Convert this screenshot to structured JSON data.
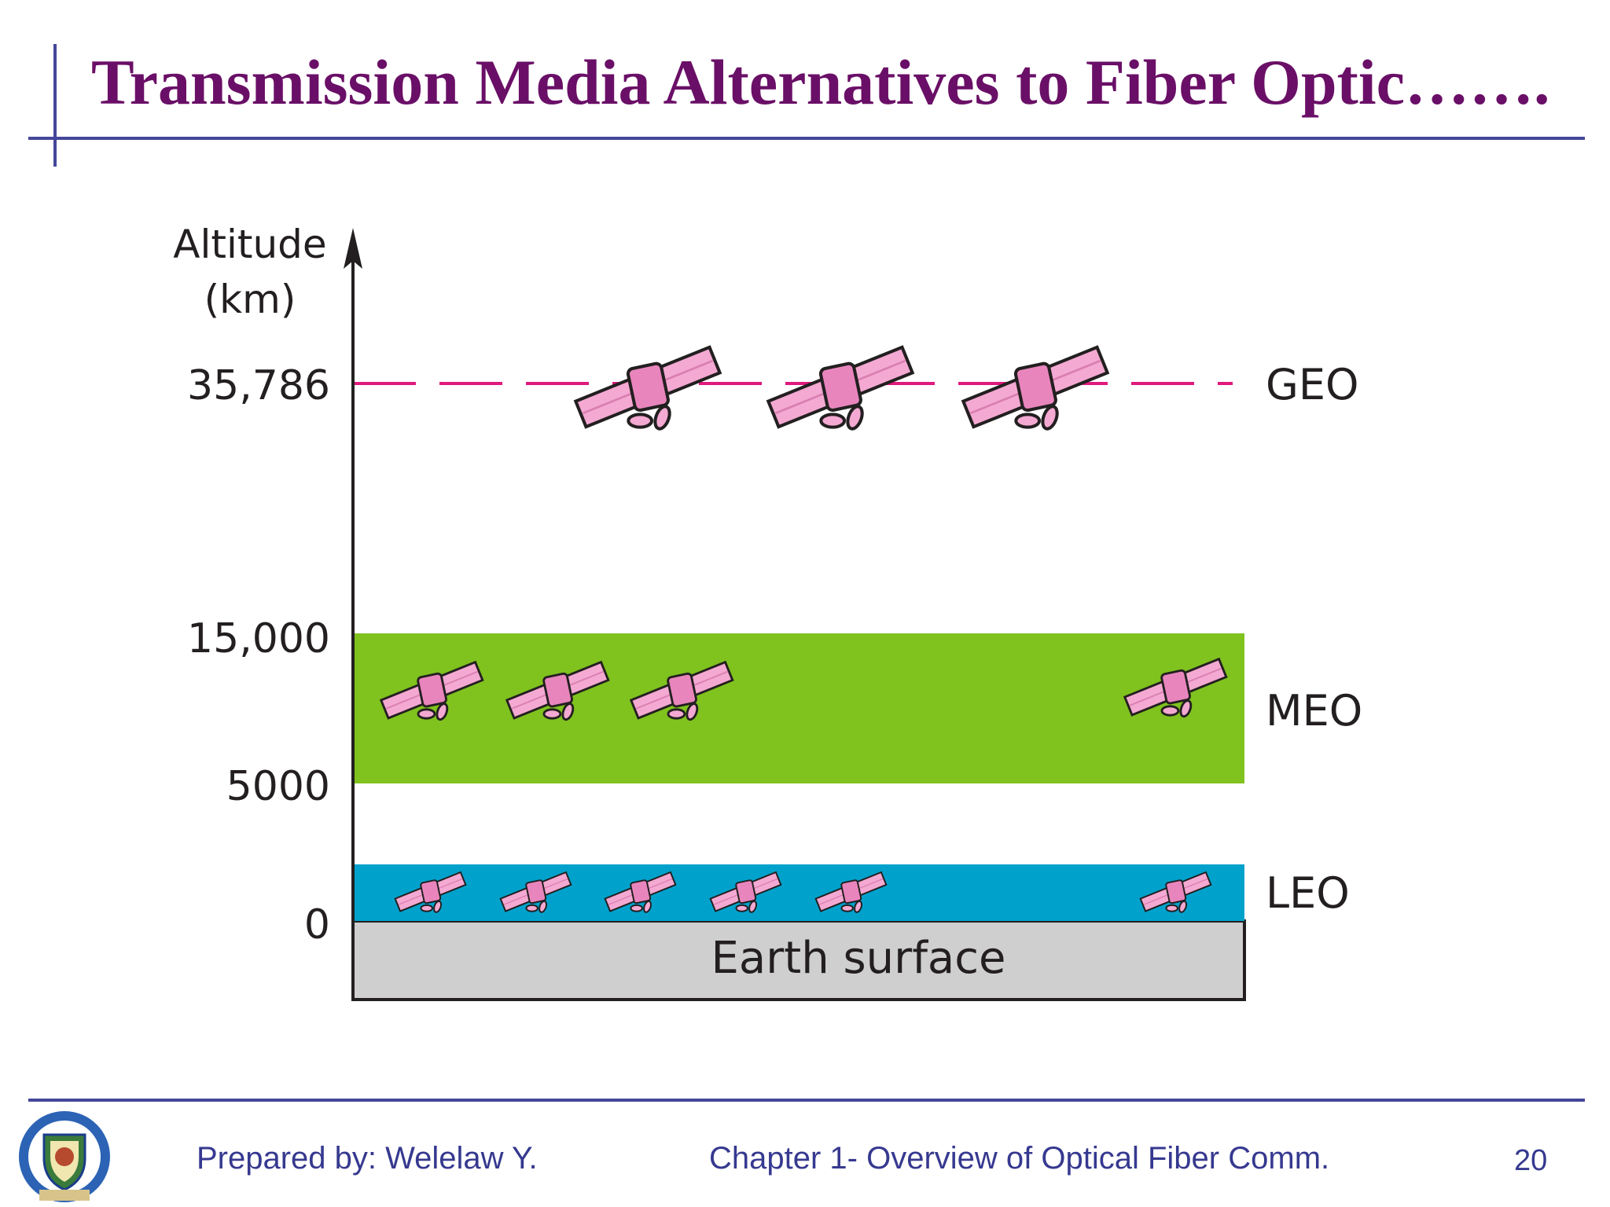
{
  "slide": {
    "title": "Transmission Media Alternatives to Fiber Optic…….",
    "page_number": "20"
  },
  "footer": {
    "author": "Prepared by: Welelaw Y.",
    "chapter": "Chapter 1- Overview of Optical Fiber Comm."
  },
  "diagram": {
    "axis_title_line1": "Altitude",
    "axis_title_line2": "(km)",
    "ticks": [
      "35,786",
      "15,000",
      "5000",
      "0"
    ],
    "orbits": [
      {
        "name": "GEO",
        "satellite_count": 3
      },
      {
        "name": "MEO",
        "satellite_count": 4
      },
      {
        "name": "LEO",
        "satellite_count": 6
      }
    ],
    "earth_label": "Earth surface",
    "colors": {
      "geo_line": "#e0197d",
      "meo_band": "#80c21e",
      "leo_band": "#00a2cc",
      "earth": "#cfcfcf",
      "satellite": "#f4a9d2",
      "title": "#6a0f67",
      "rule": "#44479a"
    },
    "icons": [
      "satellite-icon",
      "arrow-up-icon",
      "university-seal-icon"
    ]
  }
}
